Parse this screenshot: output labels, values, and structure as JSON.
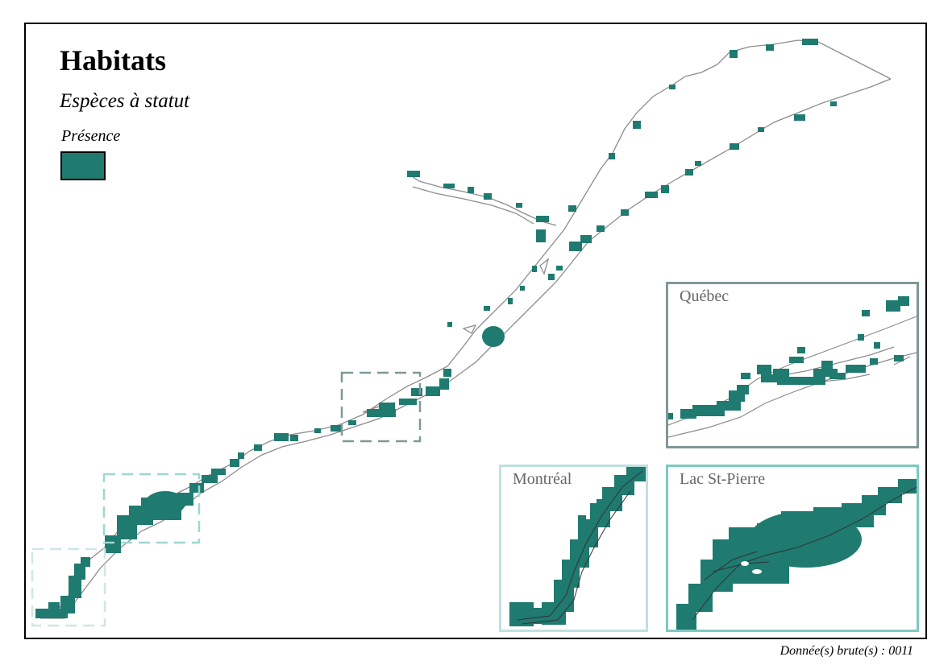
{
  "map": {
    "title": "Habitats",
    "subtitle": "Espèces à statut",
    "legend": {
      "label": "Présence",
      "color": "#1f7a70"
    },
    "footer": "Donnée(s) brute(s) : 0011"
  },
  "insets": [
    {
      "key": "quebec",
      "label": "Québec",
      "border_color": "#7f9898"
    },
    {
      "key": "montreal",
      "label": "Montréal",
      "border_color": "#bfe0e0"
    },
    {
      "key": "lac_st_pierre",
      "label": "Lac St-Pierre",
      "border_color": "#7ccac2"
    }
  ],
  "colors": {
    "habitat": "#1f7a70",
    "river_outline": "#8c8c8c",
    "frame": "#000000"
  }
}
